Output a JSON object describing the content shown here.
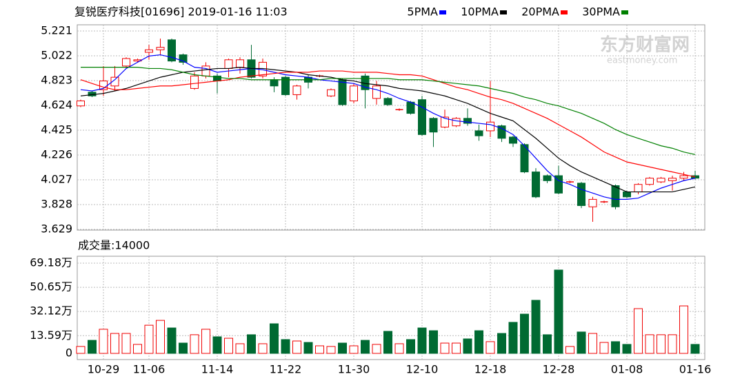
{
  "chart_data": [
    {
      "type": "candlestick",
      "title": "复锐医疗科技[01696] 2019-01-16 11:03",
      "watermark_text": "东方财富网",
      "watermark_url": "eastmoney.com",
      "categories": [
        null,
        null,
        "10-29",
        null,
        null,
        null,
        "11-06",
        null,
        null,
        null,
        null,
        null,
        "11-14",
        null,
        null,
        null,
        null,
        null,
        "11-22",
        null,
        null,
        null,
        null,
        null,
        "11-30",
        null,
        null,
        null,
        null,
        null,
        "12-10",
        null,
        null,
        null,
        null,
        null,
        "12-18",
        null,
        null,
        null,
        null,
        null,
        "12-28",
        null,
        null,
        null,
        null,
        null,
        "01-08",
        null,
        null,
        null,
        null,
        null,
        "01-16"
      ],
      "open": [
        4.62,
        4.73,
        4.75,
        4.78,
        4.94,
        4.98,
        5.05,
        5.07,
        5.15,
        5.03,
        4.76,
        4.86,
        4.86,
        4.92,
        4.93,
        4.99,
        4.86,
        4.83,
        4.85,
        4.71,
        4.85,
        4.86,
        4.7,
        4.83,
        4.66,
        4.86,
        4.68,
        4.68,
        4.59,
        4.65,
        4.67,
        4.52,
        4.45,
        4.46,
        4.52,
        4.42,
        4.42,
        4.46,
        4.37,
        4.31,
        4.09,
        4.06,
        4.06,
        4.01,
        4.0,
        3.81,
        3.85,
        3.98,
        3.93,
        3.93,
        3.99,
        4.01,
        4.02,
        4.04,
        4.06
      ],
      "close": [
        4.66,
        4.7,
        4.82,
        4.85,
        5.0,
        4.99,
        5.07,
        5.09,
        4.98,
        4.97,
        4.86,
        4.94,
        4.82,
        4.99,
        4.99,
        4.85,
        4.97,
        4.78,
        4.71,
        4.78,
        4.81,
        4.86,
        4.75,
        4.63,
        4.78,
        4.75,
        4.78,
        4.63,
        4.59,
        4.56,
        4.39,
        4.41,
        4.53,
        4.52,
        4.48,
        4.38,
        4.49,
        4.36,
        4.32,
        4.09,
        3.89,
        4.02,
        3.92,
        4.01,
        3.82,
        3.87,
        3.85,
        3.81,
        3.89,
        3.99,
        4.04,
        4.04,
        4.04,
        4.06,
        4.04
      ],
      "high": [
        4.67,
        4.74,
        4.94,
        4.94,
        5.01,
        5.0,
        5.11,
        5.16,
        5.16,
        5.04,
        4.89,
        4.97,
        4.88,
        5.0,
        5.01,
        5.11,
        5.0,
        4.85,
        4.86,
        4.79,
        4.87,
        4.87,
        4.76,
        4.84,
        4.8,
        4.88,
        4.82,
        4.69,
        4.6,
        4.66,
        4.7,
        4.53,
        4.59,
        4.53,
        4.6,
        4.47,
        4.82,
        4.47,
        4.38,
        4.32,
        4.12,
        4.07,
        4.14,
        4.02,
        4.01,
        3.89,
        3.86,
        3.99,
        3.94,
        4.0,
        4.05,
        4.05,
        4.06,
        4.09,
        4.1
      ],
      "low": [
        4.61,
        4.69,
        4.7,
        4.74,
        4.92,
        4.97,
        4.99,
        5.03,
        4.97,
        4.95,
        4.75,
        4.84,
        4.72,
        4.85,
        4.88,
        4.84,
        4.84,
        4.73,
        4.7,
        4.67,
        4.76,
        4.85,
        4.69,
        4.62,
        4.64,
        4.6,
        4.63,
        4.62,
        4.58,
        4.55,
        4.38,
        4.29,
        4.44,
        4.45,
        4.46,
        4.34,
        4.37,
        4.33,
        4.29,
        4.08,
        3.88,
        4.0,
        3.91,
        4.0,
        3.8,
        3.69,
        3.84,
        3.79,
        3.88,
        3.91,
        3.98,
        4.0,
        3.94,
        4.02,
        4.03
      ],
      "up_color": "#f00000",
      "down_color": "#006a32",
      "series": [
        {
          "name": "5PMA",
          "color": "#0000ff",
          "values": [
            4.75,
            4.74,
            4.76,
            4.83,
            4.92,
            4.97,
            5.02,
            5.03,
            5.01,
            4.98,
            4.93,
            4.92,
            4.89,
            4.9,
            4.91,
            4.92,
            4.91,
            4.89,
            4.87,
            4.86,
            4.85,
            4.83,
            4.82,
            4.81,
            4.8,
            4.77,
            4.75,
            4.72,
            4.68,
            4.65,
            4.61,
            4.56,
            4.52,
            4.5,
            4.49,
            4.48,
            4.47,
            4.44,
            4.39,
            4.3,
            4.2,
            4.1,
            4.02,
            3.99,
            3.95,
            3.92,
            3.89,
            3.87,
            3.87,
            3.88,
            3.92,
            3.96,
            3.99,
            4.02,
            4.04
          ]
        },
        {
          "name": "10PMA",
          "color": "#000000",
          "values": [
            4.7,
            4.71,
            4.72,
            4.74,
            4.76,
            4.79,
            4.82,
            4.85,
            4.87,
            4.89,
            4.9,
            4.91,
            4.92,
            4.92,
            4.93,
            4.92,
            4.92,
            4.91,
            4.9,
            4.89,
            4.87,
            4.86,
            4.85,
            4.83,
            4.82,
            4.8,
            4.79,
            4.78,
            4.76,
            4.75,
            4.74,
            4.72,
            4.7,
            4.67,
            4.64,
            4.6,
            4.56,
            4.53,
            4.5,
            4.43,
            4.36,
            4.28,
            4.2,
            4.14,
            4.09,
            4.05,
            4.01,
            3.97,
            3.93,
            3.93,
            3.93,
            3.93,
            3.93,
            3.95,
            3.97
          ]
        },
        {
          "name": "20PMA",
          "color": "#ff0000",
          "values": [
            4.83,
            4.8,
            4.77,
            4.75,
            4.75,
            4.76,
            4.77,
            4.78,
            4.78,
            4.79,
            4.8,
            4.81,
            4.82,
            4.83,
            4.85,
            4.86,
            4.87,
            4.88,
            4.89,
            4.89,
            4.89,
            4.9,
            4.9,
            4.9,
            4.89,
            4.89,
            4.89,
            4.88,
            4.87,
            4.87,
            4.86,
            4.83,
            4.8,
            4.77,
            4.75,
            4.72,
            4.69,
            4.67,
            4.64,
            4.6,
            4.56,
            4.52,
            4.47,
            4.42,
            4.37,
            4.31,
            4.25,
            4.21,
            4.17,
            4.15,
            4.13,
            4.11,
            4.09,
            4.07,
            4.05
          ]
        },
        {
          "name": "30PMA",
          "color": "#008000",
          "values": [
            4.93,
            4.93,
            4.93,
            4.93,
            4.93,
            4.93,
            4.92,
            4.92,
            4.91,
            4.89,
            4.87,
            4.86,
            4.85,
            4.84,
            4.84,
            4.83,
            4.83,
            4.83,
            4.83,
            4.83,
            4.83,
            4.83,
            4.84,
            4.84,
            4.84,
            4.84,
            4.84,
            4.84,
            4.83,
            4.83,
            4.83,
            4.82,
            4.81,
            4.8,
            4.79,
            4.78,
            4.76,
            4.74,
            4.72,
            4.69,
            4.67,
            4.64,
            4.62,
            4.59,
            4.56,
            4.52,
            4.48,
            4.43,
            4.39,
            4.36,
            4.33,
            4.3,
            4.28,
            4.25,
            4.23
          ]
        }
      ],
      "ylim": [
        3.629,
        5.221
      ],
      "yticks": [
        3.629,
        3.828,
        4.027,
        4.226,
        4.425,
        4.624,
        4.823,
        5.022,
        5.221
      ],
      "grid": true
    },
    {
      "type": "bar",
      "title": "成交量:14000",
      "values": [
        5.3,
        10,
        18.5,
        15.3,
        15.3,
        6.9,
        21.6,
        25.3,
        19.5,
        7.9,
        14.3,
        18.5,
        12.7,
        11.6,
        7.4,
        14.3,
        7.4,
        22.7,
        10.6,
        9.5,
        8.4,
        5.8,
        5.3,
        7.9,
        5.8,
        10,
        6.9,
        16.9,
        7.4,
        10.6,
        19.5,
        17.4,
        7.9,
        7.9,
        11.1,
        17.4,
        9,
        15.3,
        23.8,
        30.1,
        40.7,
        14.3,
        63.9,
        5.3,
        16.4,
        15.3,
        8.4,
        9,
        6.9,
        34.3,
        14.3,
        14.3,
        14.3,
        36.4,
        6.9
      ],
      "ylim": [
        0,
        69.18
      ],
      "yticks": [
        0,
        {
          "value": 13.59,
          "label": "13.59万"
        },
        {
          "value": 32.12,
          "label": "32.12万"
        },
        {
          "value": 50.65,
          "label": "50.65万"
        },
        {
          "value": 69.18,
          "label": "69.18万"
        }
      ],
      "grid": true
    }
  ]
}
